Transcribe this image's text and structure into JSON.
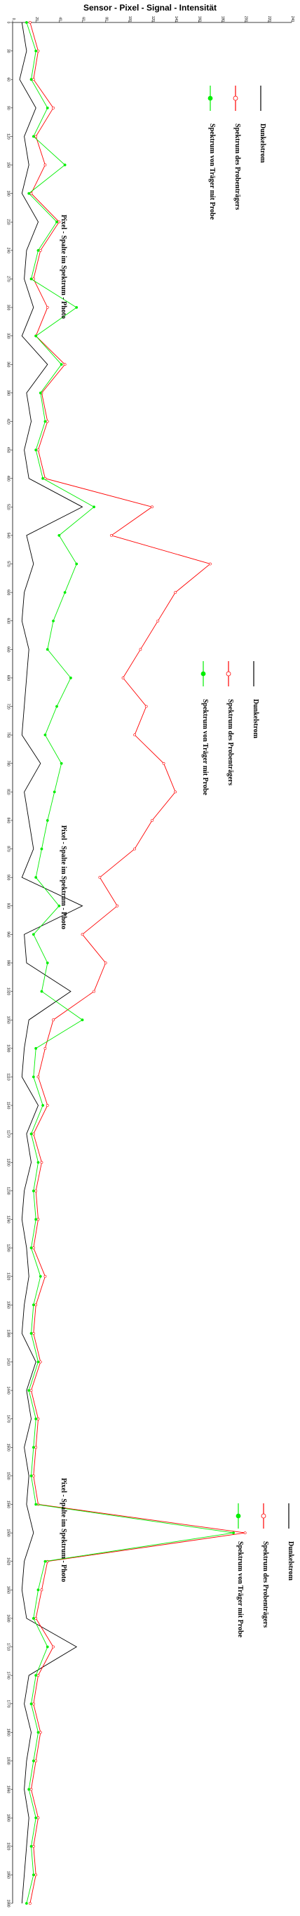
{
  "chart_data": {
    "type": "line",
    "title": "Sensor  -  Pixel  -  Signal  -  Intensität",
    "xlabel": "Pixel  -  Spalte  im  Spektrum  -  Photo",
    "ylabel": "",
    "y_ticks": [
      "0",
      "20",
      "40",
      "60",
      "80",
      "100",
      "120",
      "140",
      "160",
      "180",
      "200",
      "220",
      "240"
    ],
    "ylim": [
      0,
      240
    ],
    "xlim": [
      0,
      1980
    ],
    "x_ticks": [
      "0",
      "30",
      "60",
      "90",
      "120",
      "150",
      "180",
      "210",
      "240",
      "270",
      "300",
      "330",
      "360",
      "390",
      "420",
      "450",
      "480",
      "510",
      "540",
      "570",
      "600",
      "630",
      "660",
      "690",
      "720",
      "750",
      "780",
      "810",
      "840",
      "870",
      "900",
      "930",
      "960",
      "990",
      "1020",
      "1050",
      "1080",
      "1110",
      "1140",
      "1170",
      "1200",
      "1230",
      "1260",
      "1290",
      "1320",
      "1350",
      "1380",
      "1410",
      "1440",
      "1470",
      "1500",
      "1530",
      "1560",
      "1590",
      "1620",
      "1650",
      "1680",
      "1710",
      "1740",
      "1770",
      "1800",
      "1830",
      "1860",
      "1890",
      "1920",
      "1950",
      "1980"
    ],
    "orientation": "rotated-90-clockwise",
    "grid": false,
    "legend_position": "repeated three times along the plot",
    "series": [
      {
        "name": "Dunkelstrom",
        "color": "#000000",
        "marker": "none",
        "x": [
          0,
          30,
          60,
          90,
          120,
          150,
          180,
          210,
          240,
          270,
          300,
          330,
          360,
          390,
          420,
          450,
          480,
          510,
          540,
          570,
          600,
          630,
          660,
          690,
          720,
          750,
          780,
          810,
          840,
          870,
          900,
          930,
          960,
          990,
          1020,
          1050,
          1080,
          1110,
          1140,
          1170,
          1200,
          1230,
          1260,
          1290,
          1320,
          1350,
          1380,
          1410,
          1440,
          1470,
          1500,
          1530,
          1560,
          1590,
          1620,
          1650,
          1680,
          1710,
          1740,
          1770,
          1800,
          1830,
          1860,
          1890,
          1920,
          1950,
          1980
        ],
        "values": [
          8,
          12,
          6,
          20,
          10,
          14,
          8,
          22,
          12,
          10,
          18,
          8,
          30,
          12,
          16,
          10,
          14,
          60,
          12,
          18,
          10,
          8,
          14,
          12,
          10,
          8,
          24,
          10,
          14,
          18,
          8,
          60,
          10,
          12,
          50,
          14,
          10,
          8,
          22,
          12,
          16,
          10,
          8,
          12,
          14,
          10,
          8,
          20,
          12,
          16,
          10,
          14,
          12,
          18,
          10,
          8,
          12,
          55,
          14,
          10,
          16,
          12,
          10,
          14,
          12,
          10,
          8
        ]
      },
      {
        "name": "Spektrum  des  Probenträgers",
        "color": "#ff0000",
        "marker": "circle-open",
        "x": [
          0,
          30,
          60,
          90,
          120,
          150,
          180,
          210,
          240,
          270,
          300,
          330,
          360,
          390,
          420,
          450,
          480,
          510,
          540,
          570,
          600,
          630,
          660,
          690,
          720,
          750,
          780,
          810,
          840,
          870,
          900,
          930,
          960,
          990,
          1020,
          1050,
          1080,
          1110,
          1140,
          1170,
          1200,
          1230,
          1260,
          1290,
          1320,
          1350,
          1380,
          1410,
          1440,
          1470,
          1500,
          1530,
          1560,
          1590,
          1620,
          1650,
          1680,
          1710,
          1740,
          1770,
          1800,
          1830,
          1860,
          1890,
          1920,
          1950,
          1980
        ],
        "values": [
          15,
          22,
          18,
          35,
          20,
          28,
          16,
          40,
          24,
          18,
          30,
          20,
          45,
          25,
          30,
          22,
          28,
          120,
          85,
          170,
          140,
          125,
          110,
          95,
          115,
          105,
          130,
          140,
          120,
          105,
          75,
          90,
          60,
          80,
          70,
          35,
          28,
          22,
          30,
          18,
          25,
          20,
          22,
          18,
          28,
          20,
          18,
          24,
          16,
          22,
          20,
          18,
          22,
          200,
          30,
          25,
          20,
          35,
          22,
          18,
          24,
          20,
          16,
          22,
          18,
          20,
          15
        ]
      },
      {
        "name": "Spektrum  von  Träger  mit  Probe",
        "color": "#00ee00",
        "marker": "circle-filled",
        "x": [
          0,
          30,
          60,
          90,
          120,
          150,
          180,
          210,
          240,
          270,
          300,
          330,
          360,
          390,
          420,
          450,
          480,
          510,
          540,
          570,
          600,
          630,
          660,
          690,
          720,
          750,
          780,
          810,
          840,
          870,
          900,
          930,
          960,
          990,
          1020,
          1050,
          1080,
          1110,
          1140,
          1170,
          1200,
          1230,
          1260,
          1290,
          1320,
          1350,
          1380,
          1410,
          1440,
          1470,
          1500,
          1530,
          1560,
          1590,
          1620,
          1650,
          1680,
          1710,
          1740,
          1770,
          1800,
          1830,
          1860,
          1890,
          1920,
          1950,
          1980
        ],
        "values": [
          12,
          20,
          16,
          30,
          18,
          45,
          14,
          38,
          22,
          16,
          55,
          20,
          42,
          24,
          28,
          20,
          26,
          70,
          40,
          55,
          45,
          35,
          30,
          50,
          38,
          28,
          42,
          36,
          30,
          25,
          20,
          40,
          18,
          30,
          25,
          60,
          20,
          18,
          26,
          16,
          22,
          18,
          20,
          16,
          24,
          18,
          16,
          22,
          14,
          20,
          18,
          16,
          20,
          190,
          28,
          22,
          18,
          30,
          20,
          16,
          22,
          18,
          14,
          20,
          16,
          18,
          12
        ]
      }
    ]
  }
}
